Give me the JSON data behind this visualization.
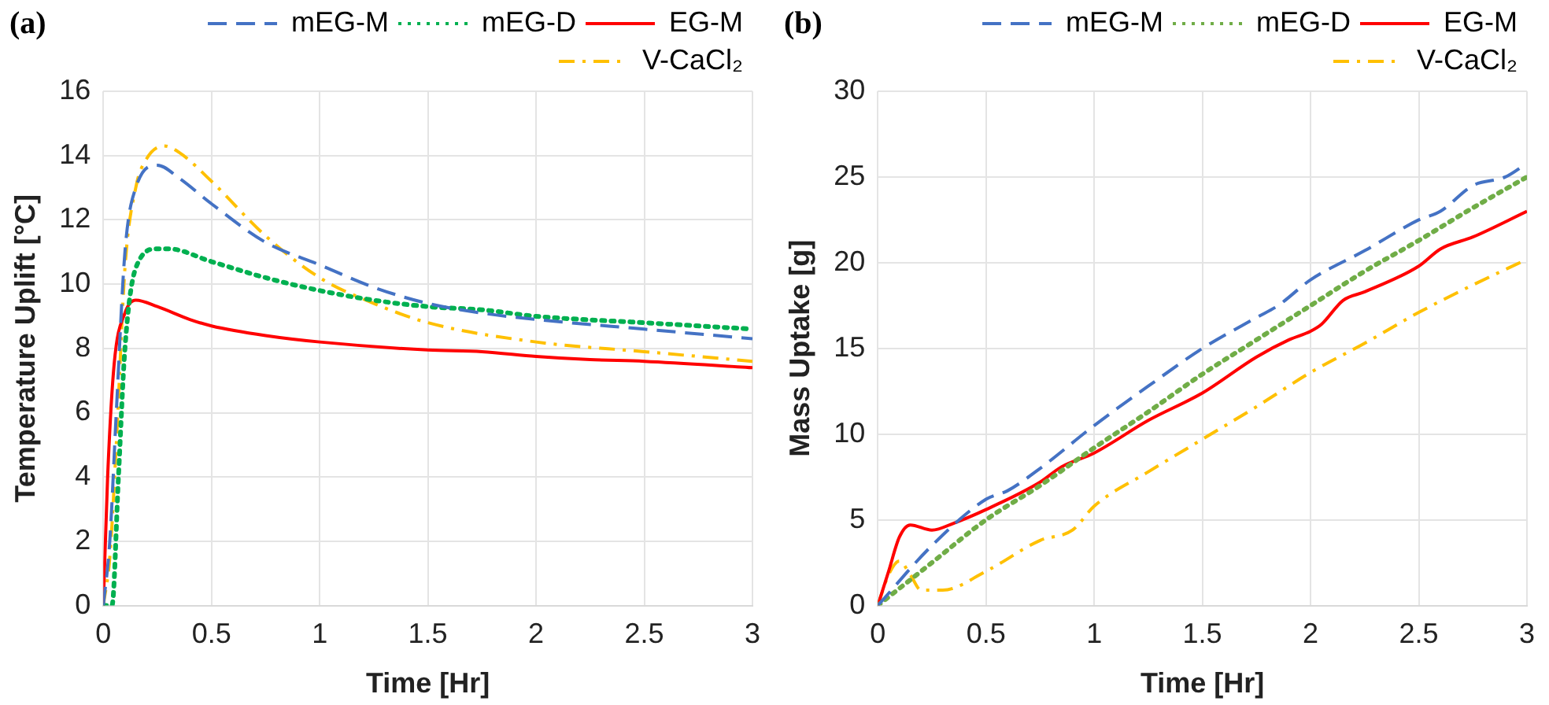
{
  "chart_data": [
    {
      "type": "line",
      "title": "(a)",
      "xlabel": "Time [Hr]",
      "ylabel": "Temperature Uplift [°C]",
      "xlim": [
        0,
        3
      ],
      "xticks": [
        0,
        0.5,
        1,
        1.5,
        2,
        2.5,
        3
      ],
      "ylim": [
        0,
        16
      ],
      "yticks": [
        0,
        2,
        4,
        6,
        8,
        10,
        12,
        14,
        16
      ],
      "grid": true,
      "legend": "top",
      "marker": "none",
      "series": [
        {
          "name": "mEG-M",
          "color": "#4472c4",
          "line_style": "dashed",
          "x": [
            0,
            0.03,
            0.06,
            0.1,
            0.15,
            0.25,
            0.35,
            0.5,
            0.75,
            1,
            1.25,
            1.5,
            1.75,
            2,
            2.5,
            3
          ],
          "values": [
            0,
            2,
            6,
            11,
            13,
            13.7,
            13.3,
            12.5,
            11.3,
            10.6,
            9.9,
            9.4,
            9.1,
            8.9,
            8.6,
            8.3
          ]
        },
        {
          "name": "mEG-D",
          "color": "#00b050",
          "line_style": "dotted",
          "x": [
            0,
            0.04,
            0.07,
            0.1,
            0.15,
            0.25,
            0.3,
            0.5,
            0.75,
            1,
            1.25,
            1.5,
            1.75,
            2,
            2.5,
            3
          ],
          "values": [
            0,
            0,
            4,
            8,
            10.5,
            11.1,
            11.1,
            10.7,
            10.2,
            9.8,
            9.5,
            9.3,
            9.2,
            9,
            8.8,
            8.6
          ]
        },
        {
          "name": "EG-M",
          "color": "#ff0000",
          "line_style": "solid",
          "x": [
            0,
            0.02,
            0.05,
            0.1,
            0.15,
            0.25,
            0.4,
            0.5,
            0.75,
            1,
            1.5,
            1.75,
            2,
            2.25,
            2.5,
            3
          ],
          "values": [
            0,
            4,
            7.5,
            9.1,
            9.5,
            9.3,
            8.9,
            8.7,
            8.4,
            8.2,
            7.95,
            7.9,
            7.75,
            7.65,
            7.6,
            7.4
          ]
        },
        {
          "name": "V-CaCl₂",
          "color": "#ffc000",
          "line_style": "dashdot",
          "x": [
            0,
            0.03,
            0.06,
            0.1,
            0.15,
            0.2,
            0.28,
            0.35,
            0.5,
            0.75,
            1,
            1.25,
            1.5,
            2,
            2.5,
            3
          ],
          "values": [
            0,
            1.5,
            5,
            10.5,
            13,
            13.9,
            14.3,
            14.1,
            13.2,
            11.5,
            10.2,
            9.4,
            8.8,
            8.2,
            7.9,
            7.6
          ]
        }
      ]
    },
    {
      "type": "line",
      "title": "(b)",
      "xlabel": "Time [Hr]",
      "ylabel": "Mass Uptake [g]",
      "xlim": [
        0,
        3
      ],
      "xticks": [
        0,
        0.5,
        1,
        1.5,
        2,
        2.5,
        3
      ],
      "ylim": [
        0,
        30
      ],
      "yticks": [
        0,
        5,
        10,
        15,
        20,
        25,
        30
      ],
      "grid": true,
      "legend": "top",
      "marker": "none",
      "series": [
        {
          "name": "mEG-M",
          "color": "#4472c4",
          "line_style": "dashed",
          "x": [
            0,
            0.25,
            0.5,
            0.6,
            0.75,
            1,
            1.25,
            1.5,
            1.75,
            1.85,
            2,
            2.25,
            2.5,
            2.6,
            2.75,
            2.9,
            3
          ],
          "values": [
            0,
            3.5,
            6.2,
            6.7,
            8,
            10.5,
            12.8,
            15,
            16.8,
            17.5,
            19,
            20.7,
            22.5,
            23,
            24.5,
            25,
            25.8
          ]
        },
        {
          "name": "mEG-D",
          "color": "#70ad47",
          "line_style": "dotted",
          "x": [
            0,
            0.25,
            0.5,
            0.75,
            1,
            1.25,
            1.5,
            1.75,
            2,
            2.25,
            2.5,
            2.75,
            3
          ],
          "values": [
            0,
            2.5,
            5,
            7,
            9.2,
            11.3,
            13.5,
            15.5,
            17.5,
            19.5,
            21.3,
            23.2,
            25
          ]
        },
        {
          "name": "EG-M",
          "color": "#ff0000",
          "line_style": "solid",
          "x": [
            0,
            0.05,
            0.1,
            0.15,
            0.25,
            0.35,
            0.5,
            0.75,
            0.85,
            1,
            1.25,
            1.5,
            1.75,
            1.9,
            2,
            2.05,
            2.15,
            2.25,
            2.5,
            2.6,
            2.75,
            3
          ],
          "values": [
            0,
            2,
            4,
            4.7,
            4.4,
            4.8,
            5.6,
            7.2,
            8.1,
            8.9,
            10.8,
            12.4,
            14.5,
            15.5,
            16,
            16.4,
            17.8,
            18.3,
            19.8,
            20.8,
            21.5,
            23
          ]
        },
        {
          "name": "V-CaCl₂",
          "color": "#ffc000",
          "line_style": "dashdot",
          "x": [
            0,
            0.05,
            0.1,
            0.15,
            0.2,
            0.3,
            0.5,
            0.75,
            0.9,
            1,
            1.25,
            1.5,
            1.75,
            2,
            2.25,
            2.5,
            2.75,
            3
          ],
          "values": [
            0,
            1.8,
            2.6,
            1.8,
            0.9,
            0.9,
            2,
            3.8,
            4.4,
            5.8,
            7.8,
            9.7,
            11.6,
            13.6,
            15.3,
            17.1,
            18.7,
            20.2
          ]
        }
      ]
    }
  ]
}
